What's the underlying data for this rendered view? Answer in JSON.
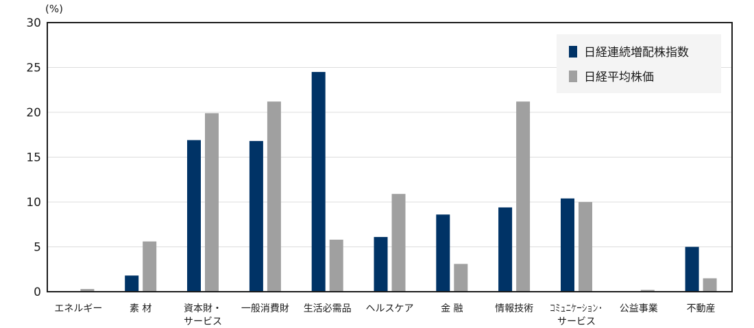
{
  "chart_data": {
    "type": "bar",
    "y_unit": "(%)",
    "ylim": [
      0,
      30
    ],
    "yticks": [
      "0",
      "5",
      "10",
      "15",
      "20",
      "25",
      "30"
    ],
    "ytick_values": [
      0,
      5,
      10,
      15,
      20,
      25,
      30
    ],
    "grid": true,
    "legend_position": "top-right",
    "categories": [
      [
        "エネルギー"
      ],
      [
        "素 材"
      ],
      [
        "資本財・",
        "サービス"
      ],
      [
        "一般消費財"
      ],
      [
        "生活必需品"
      ],
      [
        "ヘルスケア"
      ],
      [
        "金 融"
      ],
      [
        "情報技術"
      ],
      [
        "コミュニケーション・",
        "サービス"
      ],
      [
        "公益事業"
      ],
      [
        "不動産"
      ]
    ],
    "series": [
      {
        "name": "日経連続増配株指数",
        "color": "#003366",
        "values": [
          0,
          1.8,
          16.9,
          16.8,
          24.5,
          6.1,
          8.6,
          9.4,
          10.4,
          0,
          5.0
        ]
      },
      {
        "name": "日経平均株価",
        "color": "#a0a0a0",
        "values": [
          0.3,
          5.6,
          19.9,
          21.2,
          5.8,
          10.9,
          3.1,
          21.2,
          10.0,
          0.2,
          1.5
        ]
      }
    ]
  }
}
